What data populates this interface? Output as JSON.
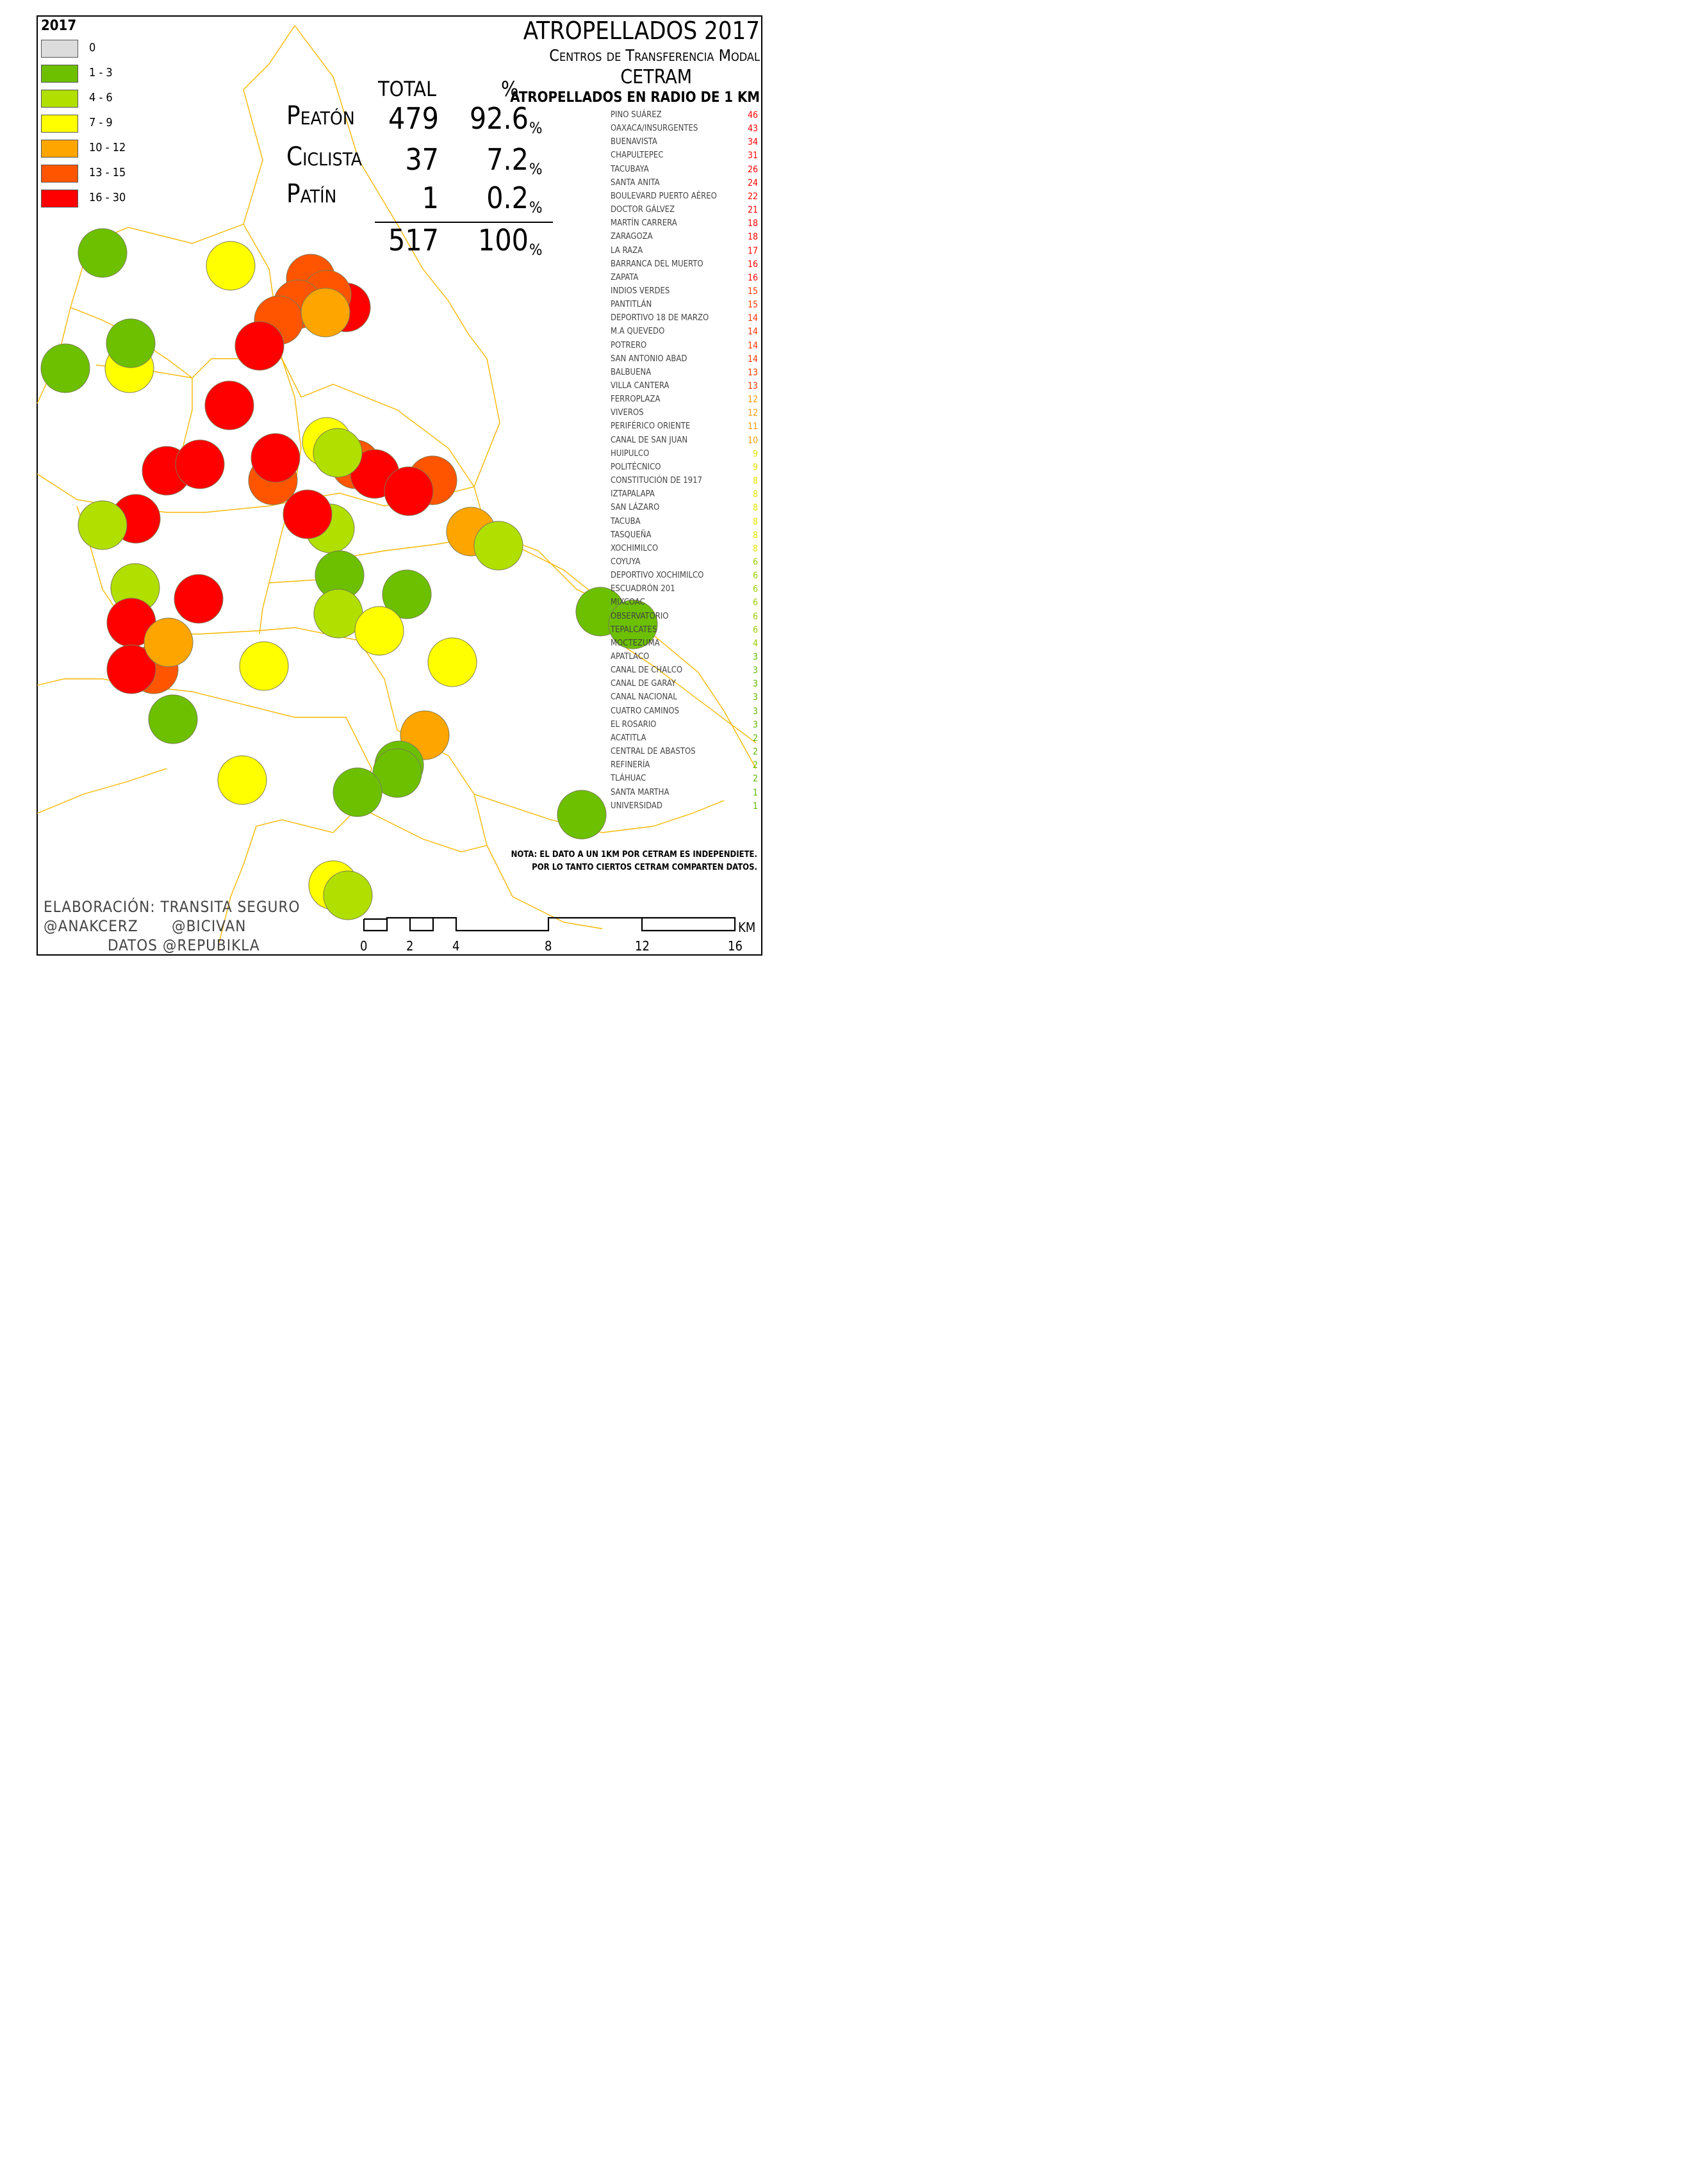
{
  "legend": {
    "title": "2017",
    "items": [
      {
        "label": "0",
        "color": "#dcdcdc"
      },
      {
        "label": "1 - 3",
        "color": "#6cc000"
      },
      {
        "label": "4 - 6",
        "color": "#b0df00"
      },
      {
        "label": "7 - 9",
        "color": "#ffff00"
      },
      {
        "label": "10 - 12",
        "color": "#ffa500"
      },
      {
        "label": "13 - 15",
        "color": "#ff5500"
      },
      {
        "label": "16 - 30",
        "color": "#ff0000"
      }
    ]
  },
  "title": {
    "main": "ATROPELLADOS 2017",
    "sub": "Centros de Transferencia Modal",
    "acronym": "CETRAM",
    "list_heading": "ATROPELLADOS EN RADIO DE 1 KM"
  },
  "summary": {
    "col_total": "TOTAL",
    "col_pct": "%",
    "rows": [
      {
        "label": "Peatón",
        "total": "479",
        "pct": "92.6"
      },
      {
        "label": "Ciclista",
        "total": "37",
        "pct": "7.2"
      },
      {
        "label": "Patín",
        "total": "1",
        "pct": "0.2"
      }
    ],
    "sum_total": "517",
    "sum_pct": "100",
    "pct_symbol": "%"
  },
  "cetrams": [
    {
      "name": "Pino Suárez",
      "value": "46",
      "color": "#ff0000"
    },
    {
      "name": "Oaxaca/Insurgentes",
      "value": "43",
      "color": "#ff0000"
    },
    {
      "name": "Buenavista",
      "value": "34",
      "color": "#ff0000"
    },
    {
      "name": "Chapultepec",
      "value": "31",
      "color": "#ff0000"
    },
    {
      "name": "Tacubaya",
      "value": "26",
      "color": "#ff0000"
    },
    {
      "name": "Santa Anita",
      "value": "24",
      "color": "#ff0000"
    },
    {
      "name": "Boulevard Puerto Aéreo",
      "value": "22",
      "color": "#ff0000"
    },
    {
      "name": "Doctor Gálvez",
      "value": "21",
      "color": "#ff0000"
    },
    {
      "name": "Martín Carrera",
      "value": "18",
      "color": "#ff0000"
    },
    {
      "name": "Zaragoza",
      "value": "18",
      "color": "#ff0000"
    },
    {
      "name": "La Raza",
      "value": "17",
      "color": "#ff0000"
    },
    {
      "name": "Barranca del Muerto",
      "value": "16",
      "color": "#ff0000"
    },
    {
      "name": "Zapata",
      "value": "16",
      "color": "#ff0000"
    },
    {
      "name": "Indios Verdes",
      "value": "15",
      "color": "#ff3300"
    },
    {
      "name": "Pantitlán",
      "value": "15",
      "color": "#ff3300"
    },
    {
      "name": "Deportivo 18 de Marzo",
      "value": "14",
      "color": "#ff3300"
    },
    {
      "name": "M.A Quevedo",
      "value": "14",
      "color": "#ff3300"
    },
    {
      "name": "Potrero",
      "value": "14",
      "color": "#ff3300"
    },
    {
      "name": "San Antonio Abad",
      "value": "14",
      "color": "#ff3300"
    },
    {
      "name": "Balbuena",
      "value": "13",
      "color": "#ff3300"
    },
    {
      "name": "Villa Cantera",
      "value": "13",
      "color": "#ff3300"
    },
    {
      "name": "Ferroplaza",
      "value": "12",
      "color": "#ff9900"
    },
    {
      "name": "Viveros",
      "value": "12",
      "color": "#ff9900"
    },
    {
      "name": "Periférico Oriente",
      "value": "11",
      "color": "#ff9900"
    },
    {
      "name": "Canal de San Juan",
      "value": "10",
      "color": "#ff9900"
    },
    {
      "name": "Huipulco",
      "value": "9",
      "color": "#e6e600"
    },
    {
      "name": "Politécnico",
      "value": "9",
      "color": "#e6e600"
    },
    {
      "name": "Constitución de 1917",
      "value": "8",
      "color": "#e6e600"
    },
    {
      "name": "Iztapalapa",
      "value": "8",
      "color": "#e6e600"
    },
    {
      "name": "San Lázaro",
      "value": "8",
      "color": "#e6e600"
    },
    {
      "name": "Tacuba",
      "value": "8",
      "color": "#e6e600"
    },
    {
      "name": "Tasqueña",
      "value": "8",
      "color": "#e6e600"
    },
    {
      "name": "Xochimilco",
      "value": "8",
      "color": "#e6e600"
    },
    {
      "name": "Coyuya",
      "value": "6",
      "color": "#99cc00"
    },
    {
      "name": "Deportivo Xochimilco",
      "value": "6",
      "color": "#99cc00"
    },
    {
      "name": "Escuadrón 201",
      "value": "6",
      "color": "#99cc00"
    },
    {
      "name": "Mixcoac",
      "value": "6",
      "color": "#99cc00"
    },
    {
      "name": "Observatorio",
      "value": "6",
      "color": "#99cc00"
    },
    {
      "name": "Tepalcates",
      "value": "6",
      "color": "#99cc00"
    },
    {
      "name": "Moctezuma",
      "value": "4",
      "color": "#99cc00"
    },
    {
      "name": "Apatlaco",
      "value": "3",
      "color": "#5cb800"
    },
    {
      "name": "Canal de Chalco",
      "value": "3",
      "color": "#5cb800"
    },
    {
      "name": "Canal de Garay",
      "value": "3",
      "color": "#5cb800"
    },
    {
      "name": "Canal Nacional",
      "value": "3",
      "color": "#5cb800"
    },
    {
      "name": "Cuatro Caminos",
      "value": "3",
      "color": "#5cb800"
    },
    {
      "name": "El Rosario",
      "value": "3",
      "color": "#5cb800"
    },
    {
      "name": "Acatitla",
      "value": "2",
      "color": "#5cb800"
    },
    {
      "name": "Central de Abastos",
      "value": "2",
      "color": "#5cb800"
    },
    {
      "name": "Refinería",
      "value": "2",
      "color": "#5cb800"
    },
    {
      "name": "Tláhuac",
      "value": "2",
      "color": "#5cb800"
    },
    {
      "name": "Santa Martha",
      "value": "1",
      "color": "#5cb800"
    },
    {
      "name": "Universidad",
      "value": "1",
      "color": "#5cb800"
    }
  ],
  "nota": {
    "line1": "NOTA: EL DATO A UN 1KM POR CETRAM ES INDEPENDIETE.",
    "line2": "POR LO TANTO CIERTOS CETRAM COMPARTEN DATOS."
  },
  "credits": {
    "line1": "ELABORACIÓN: TRANSITA SEGURO",
    "handle1": "@ANAKCERZ",
    "handle2": "@BICIVAN",
    "line3": "DATOS   @REPUBIKLA"
  },
  "scale": {
    "unit": "KM",
    "ticks": [
      "0",
      "2",
      "4",
      "8",
      "12",
      "16"
    ]
  },
  "colors": {
    "boundary": "#f5b800",
    "green": "#6cc000",
    "lightgreen": "#b0df00",
    "yellow": "#ffff00",
    "orange": "#ffa500",
    "darkorange": "#ff5500",
    "red": "#ff0000"
  }
}
